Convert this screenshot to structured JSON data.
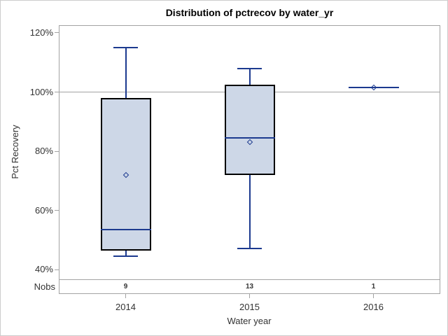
{
  "chart_data": {
    "type": "boxplot",
    "title": "Distribution of pctrecov by water_yr",
    "xlabel": "Water year",
    "ylabel": "Pct Recovery",
    "ylim": [
      36.7,
      122.6
    ],
    "refline": 100,
    "grid": "off",
    "legend": "none",
    "yticks": [
      {
        "value": 120,
        "label": "120%"
      },
      {
        "value": 100,
        "label": "100%"
      },
      {
        "value": 80,
        "label": "80%"
      },
      {
        "value": 60,
        "label": "60%"
      },
      {
        "value": 40,
        "label": "40%"
      }
    ],
    "categories": [
      "2014",
      "2015",
      "2016"
    ],
    "nobs_row": {
      "label": "Nobs",
      "values": [
        "9",
        "13",
        "1"
      ]
    },
    "series": [
      {
        "category": "2014",
        "nobs": 9,
        "min": 44.5,
        "q1": 46.5,
        "median": 53.5,
        "q3": 98,
        "max": 115,
        "mean": 72
      },
      {
        "category": "2015",
        "nobs": 13,
        "min": 47,
        "q1": 72,
        "median": 84.5,
        "q3": 102.5,
        "max": 108,
        "mean": 83
      },
      {
        "category": "2016",
        "nobs": 1,
        "min": null,
        "q1": null,
        "median": 101.5,
        "q3": null,
        "max": null,
        "mean": 101.5
      }
    ],
    "colors": {
      "box_fill": "#cdd7e7",
      "box_border": "#000000",
      "line_blue": "#1c3a8f",
      "axis_gray": "#a3a3a3",
      "label_text": "#333333",
      "title_text": "#000000",
      "canvas_border": "#cccccc",
      "background": "#ffffff"
    }
  }
}
